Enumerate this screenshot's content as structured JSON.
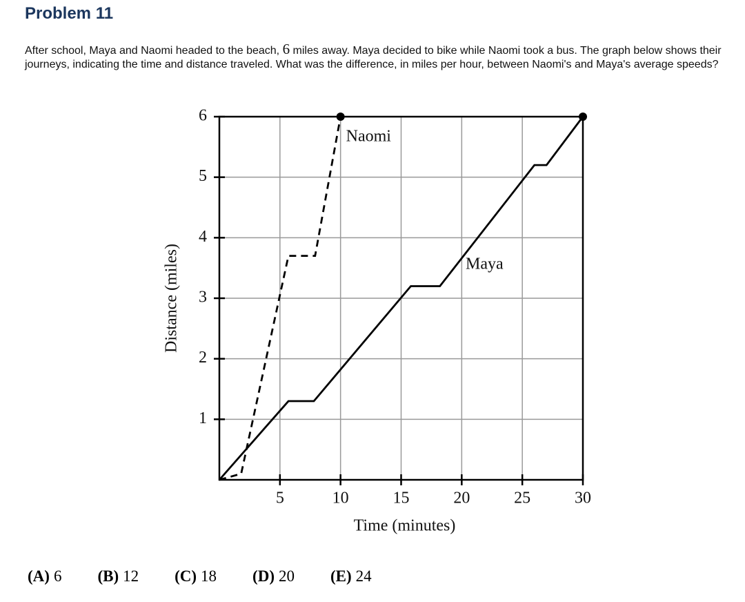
{
  "header": {
    "title": "Problem 11"
  },
  "question": [
    "After school, Maya and Naomi headed to the beach, ",
    "6",
    " miles away. Maya decided to bike while Naomi took a bus. The graph below shows their journeys, indicating the time and distance traveled. What was the difference, in miles per hour, between Naomi's and Maya's average speeds?"
  ],
  "chart_data": {
    "type": "line",
    "x_label": "Time (minutes)",
    "y_label": "Distance (miles)",
    "xlim": [
      0,
      30
    ],
    "ylim": [
      0,
      6
    ],
    "xticks": [
      5,
      10,
      15,
      20,
      25,
      30
    ],
    "yticks": [
      1,
      2,
      3,
      4,
      5,
      6
    ],
    "grid": true,
    "end_marker": true,
    "series": [
      {
        "name": "Naomi",
        "color": "#000000",
        "dashed": true,
        "x": [
          0,
          1.8,
          5.7,
          7.9,
          10
        ],
        "values": [
          0,
          0.1,
          3.7,
          3.7,
          6
        ]
      },
      {
        "name": "Maya",
        "color": "#000000",
        "dashed": false,
        "x": [
          0,
          5.7,
          7.8,
          15.8,
          18.2,
          26,
          27,
          30
        ],
        "values": [
          0,
          1.3,
          1.3,
          3.2,
          3.2,
          5.2,
          5.2,
          6
        ]
      }
    ]
  },
  "choices": [
    {
      "letter": "(A)",
      "text": "6"
    },
    {
      "letter": "(B)",
      "text": "12"
    },
    {
      "letter": "(C)",
      "text": "18"
    },
    {
      "letter": "(D)",
      "text": "20"
    },
    {
      "letter": "(E)",
      "text": "24"
    }
  ]
}
